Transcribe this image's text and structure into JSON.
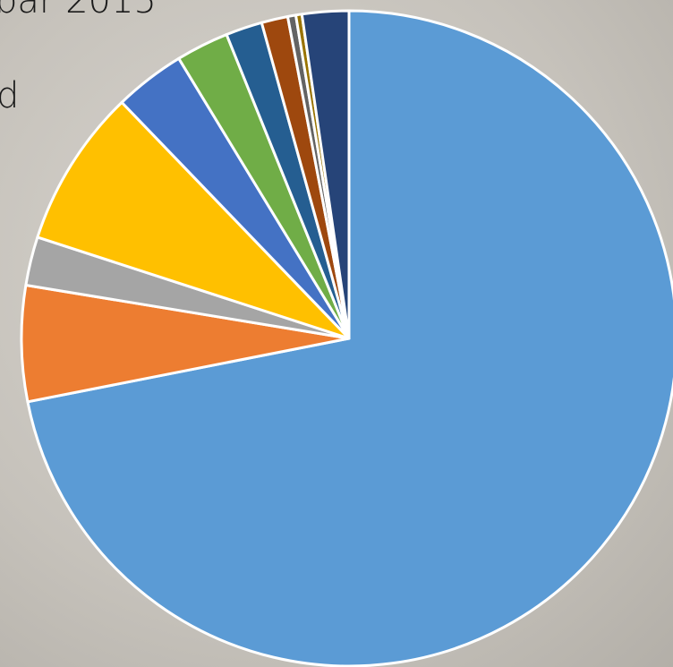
{
  "chart_data": {
    "type": "pie",
    "annotations": [
      "bar 2015",
      "d"
    ],
    "values": [
      71.9,
      5.7,
      2.4,
      7.8,
      3.5,
      2.6,
      1.8,
      1.3,
      0.4,
      0.3,
      2.3
    ],
    "colors": [
      "#5b9bd5",
      "#ed7d31",
      "#a5a5a5",
      "#ffc000",
      "#4472c4",
      "#70ad47",
      "#255e91",
      "#9e480e",
      "#636363",
      "#997300",
      "#264478"
    ]
  }
}
